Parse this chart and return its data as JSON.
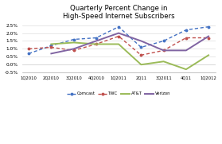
{
  "title": "Quarterly Percent Change in\nHigh-Speed Internet Subscribers",
  "x_labels": [
    "1Q2010",
    "2Q2010",
    "3Q2010",
    "4Q2010",
    "1Q2011",
    "2Q11",
    "3Q2011",
    "4Q11",
    "1Q2012"
  ],
  "series": {
    "Comcast": [
      0.007,
      0.012,
      0.016,
      0.017,
      0.024,
      0.011,
      0.015,
      0.022,
      0.024
    ],
    "TWC": [
      0.01,
      0.011,
      0.009,
      0.013,
      0.018,
      0.006,
      0.009,
      0.017,
      0.017
    ],
    "AT&T": [
      null,
      0.013,
      0.014,
      0.013,
      0.013,
      0.0,
      0.002,
      -0.003,
      0.006
    ],
    "Verizon": [
      null,
      0.007,
      0.01,
      0.015,
      0.02,
      0.015,
      0.009,
      0.009,
      0.018
    ]
  },
  "colors": {
    "Comcast": "#4472C4",
    "TWC": "#C0504D",
    "AT&T": "#9BBB59",
    "Verizon": "#8064A2"
  },
  "ylim": [
    -0.005,
    0.028
  ],
  "yticks": [
    -0.005,
    0.0,
    0.005,
    0.01,
    0.015,
    0.02,
    0.025
  ],
  "background_color": "#FFFFFF",
  "legend_labels": [
    "Comcast",
    "TWC",
    "AT&T",
    "Verizon"
  ]
}
